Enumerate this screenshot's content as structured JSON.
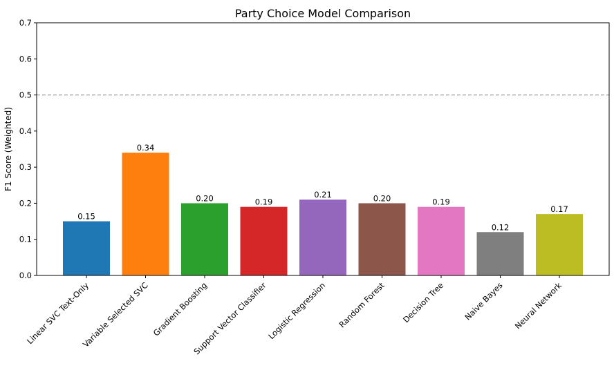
{
  "chart_data": {
    "type": "bar",
    "title": "Party Choice Model Comparison",
    "xlabel": "",
    "ylabel": "F1 Score (Weighted)",
    "ylim": [
      0,
      0.7
    ],
    "yticks": [
      "0.0",
      "0.1",
      "0.2",
      "0.3",
      "0.4",
      "0.5",
      "0.6",
      "0.7"
    ],
    "reference_line": 0.5,
    "categories": [
      "Linear SVC Text-Only",
      "Variable Selected SVC",
      "Gradient Boosting",
      "Support Vector Classifier",
      "Logistic Regression",
      "Random Forest",
      "Decision Tree",
      "Naive Bayes",
      "Neural Network"
    ],
    "values": [
      0.15,
      0.34,
      0.2,
      0.19,
      0.21,
      0.2,
      0.19,
      0.12,
      0.17
    ],
    "value_labels": [
      "0.15",
      "0.34",
      "0.20",
      "0.19",
      "0.21",
      "0.20",
      "0.19",
      "0.12",
      "0.17"
    ],
    "colors": [
      "#1f77b4",
      "#ff7f0e",
      "#2ca02c",
      "#d62728",
      "#9467bd",
      "#8c564b",
      "#e377c2",
      "#7f7f7f",
      "#bcbd22"
    ],
    "grid": false
  }
}
